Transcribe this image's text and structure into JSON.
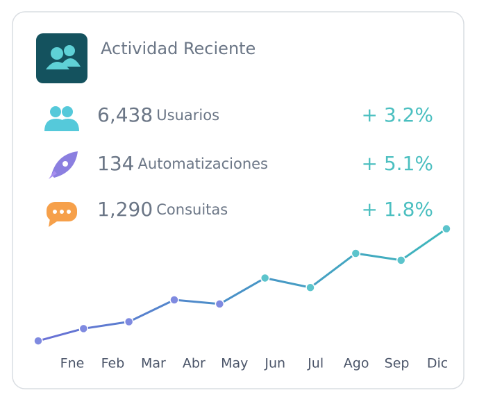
{
  "header": {
    "title": "Actividad Reciente"
  },
  "stats": [
    {
      "value": "6,438",
      "label": "Usuarios",
      "change": "+ 3.2%"
    },
    {
      "value": "134",
      "label": "Automatizaciones",
      "change": "+ 5.1%"
    },
    {
      "value": "1,290",
      "label": "Consuitas",
      "change": "+ 1.8%"
    }
  ],
  "chart_data": {
    "type": "line",
    "categories": [
      "Fne",
      "Feb",
      "Mar",
      "Abr",
      "May",
      "Jun",
      "Jul",
      "Ago",
      "Sep",
      "Dic"
    ],
    "series": [
      {
        "color": "#3fb0b8",
        "values": [
          3,
          12,
          17,
          33,
          30,
          49,
          42,
          67,
          62,
          85
        ]
      }
    ],
    "ylim": [
      0,
      100
    ]
  }
}
